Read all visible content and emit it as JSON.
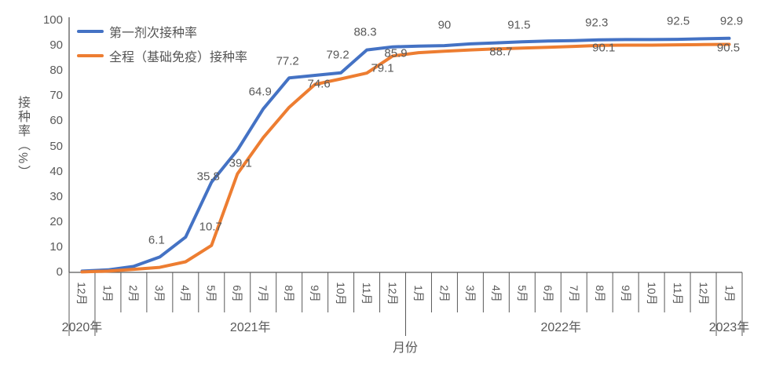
{
  "chart_data": {
    "type": "line",
    "title": "",
    "xlabel": "月份",
    "ylabel": "接种率（%）",
    "ylim": [
      0,
      100
    ],
    "y_ticks": [
      0,
      10,
      20,
      30,
      40,
      50,
      60,
      70,
      80,
      90,
      100
    ],
    "grid": false,
    "legend_position": "top-left",
    "x_categories": [
      "12月",
      "1月",
      "2月",
      "3月",
      "4月",
      "5月",
      "6月",
      "7月",
      "8月",
      "9月",
      "10月",
      "11月",
      "12月",
      "1月",
      "2月",
      "3月",
      "4月",
      "5月",
      "6月",
      "7月",
      "8月",
      "9月",
      "10月",
      "11月",
      "12月",
      "1月"
    ],
    "x_groups": [
      {
        "label": "2020年",
        "start": 0,
        "span": 1
      },
      {
        "label": "2021年",
        "start": 1,
        "span": 12
      },
      {
        "label": "2022年",
        "start": 13,
        "span": 12
      },
      {
        "label": "2023年",
        "start": 25,
        "span": 1
      }
    ],
    "series": [
      {
        "name": "第一剂次接种率",
        "color": "#4472C4",
        "values": [
          0.5,
          1,
          2.4,
          6.1,
          14,
          35.8,
          48.5,
          64.9,
          77.2,
          78.2,
          79.2,
          88.3,
          89.5,
          89.8,
          90,
          90.7,
          91.1,
          91.5,
          91.8,
          92,
          92.3,
          92.4,
          92.4,
          92.5,
          92.7,
          92.9
        ],
        "data_labels": [
          {
            "index": 3,
            "text": "6.1",
            "dx": -4,
            "dy": -21
          },
          {
            "index": 5,
            "text": "35.8",
            "dx": -4,
            "dy": -7
          },
          {
            "index": 7,
            "text": "64.9",
            "dx": -4,
            "dy": -22
          },
          {
            "index": 8,
            "text": "77.2",
            "dx": -2,
            "dy": -21
          },
          {
            "index": 10,
            "text": "79.2",
            "dx": -4,
            "dy": -23
          },
          {
            "index": 11,
            "text": "88.3",
            "dx": -2,
            "dy": -23
          },
          {
            "index": 14,
            "text": "90",
            "dx": 0,
            "dy": -26
          },
          {
            "index": 17,
            "text": "91.5",
            "dx": -4,
            "dy": -21
          },
          {
            "index": 20,
            "text": "92.3",
            "dx": -4,
            "dy": -22
          },
          {
            "index": 23,
            "text": "92.5",
            "dx": 1,
            "dy": -23
          },
          {
            "index": 25,
            "text": "92.9",
            "dx": 3,
            "dy": -22
          }
        ]
      },
      {
        "name": "全程（基础免疫）接种率",
        "color": "#ED7D31",
        "values": [
          0.2,
          0.5,
          1.2,
          2,
          4.2,
          10.7,
          39.1,
          53.5,
          65.5,
          74.6,
          76.8,
          79.1,
          85.9,
          87.2,
          87.8,
          88.3,
          88.7,
          89,
          89.3,
          89.7,
          90.1,
          90.2,
          90.2,
          90.3,
          90.4,
          90.5
        ],
        "data_labels": [
          {
            "index": 5,
            "text": "10.7",
            "dx": -1,
            "dy": -24
          },
          {
            "index": 6,
            "text": "39.1",
            "dx": 4,
            "dy": -13
          },
          {
            "index": 9,
            "text": "74.6",
            "dx": 5,
            "dy": -1
          },
          {
            "index": 11,
            "text": "79.1",
            "dx": 20,
            "dy": -6
          },
          {
            "index": 12,
            "text": "85.9",
            "dx": 4,
            "dy": -3
          },
          {
            "index": 16,
            "text": "88.7",
            "dx": 6,
            "dy": 4
          },
          {
            "index": 20,
            "text": "90.1",
            "dx": 5,
            "dy": 3
          },
          {
            "index": 25,
            "text": "90.5",
            "dx": -1,
            "dy": 5
          }
        ]
      }
    ]
  },
  "colors": {
    "axis": "#595959",
    "separator": "#595959",
    "tick_text": "#595959",
    "background": "#ffffff"
  }
}
